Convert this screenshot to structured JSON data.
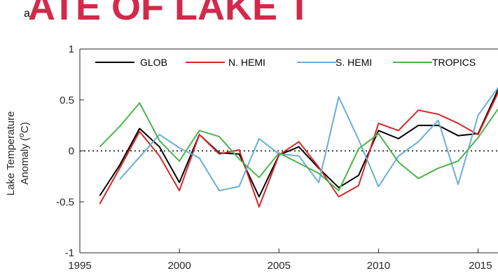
{
  "banner_text": "ATE OF LAKE T",
  "panel_letter": "a",
  "colors": {
    "GLOB": "#000000",
    "N. HEMI": "#d62728",
    "S. HEMI": "#6baed6",
    "TROPICS": "#4cb34c",
    "banner": "#d4294a"
  },
  "chart_data": {
    "type": "line",
    "xlim": [
      1995,
      2016
    ],
    "ylim": [
      -1,
      1
    ],
    "xticks": [
      1995,
      2000,
      2005,
      2010,
      2015
    ],
    "xtick_labels": [
      "1995",
      "2000",
      "2005",
      "2010",
      "2015"
    ],
    "yticks": [
      -1,
      -0.5,
      0,
      0.5,
      1
    ],
    "ytick_labels": [
      "-1",
      "-0.5",
      "0",
      "0.5",
      "1"
    ],
    "ylabel_line1": "Lake Temperature",
    "ylabel_line2": "Anomaly (°C)",
    "ylabel_line2_parts": [
      "Anomaly (",
      "o",
      "C)"
    ],
    "xlabel": "",
    "legend_placement": "top, horizontal",
    "zero_line": "dotted",
    "series": [
      {
        "name": "GLOB",
        "x": [
          1996,
          1997,
          1998,
          1999,
          2000,
          2001,
          2002,
          2003,
          2004,
          2005,
          2006,
          2007,
          2008,
          2009,
          2010,
          2011,
          2012,
          2013,
          2014,
          2015,
          2016
        ],
        "y": [
          -0.44,
          -0.14,
          0.22,
          0.04,
          -0.31,
          0.16,
          -0.02,
          -0.03,
          -0.45,
          -0.04,
          0.04,
          -0.17,
          -0.36,
          -0.24,
          0.2,
          0.12,
          0.25,
          0.25,
          0.15,
          0.17,
          0.6
        ]
      },
      {
        "name": "N. HEMI",
        "x": [
          1996,
          1997,
          1998,
          1999,
          2000,
          2001,
          2002,
          2003,
          2004,
          2005,
          2006,
          2007,
          2008,
          2009,
          2010,
          2011,
          2012,
          2013,
          2014,
          2015,
          2016
        ],
        "y": [
          -0.52,
          -0.17,
          0.19,
          -0.05,
          -0.39,
          0.16,
          -0.03,
          0.01,
          -0.55,
          -0.04,
          0.09,
          -0.16,
          -0.45,
          -0.34,
          0.27,
          0.2,
          0.4,
          0.36,
          0.27,
          0.16,
          0.57
        ]
      },
      {
        "name": "S. HEMI",
        "x": [
          1997,
          1998,
          1999,
          2000,
          2001,
          2002,
          2003,
          2004,
          2005,
          2006,
          2007,
          2008,
          2009,
          2010,
          2011,
          2012,
          2013,
          2014,
          2015,
          2016
        ],
        "y": [
          -0.28,
          -0.06,
          0.16,
          0.03,
          -0.07,
          -0.39,
          -0.35,
          0.12,
          -0.03,
          -0.05,
          -0.31,
          0.53,
          0.11,
          -0.35,
          -0.05,
          0.09,
          0.3,
          -0.33,
          0.35,
          0.62
        ]
      },
      {
        "name": "TROPICS",
        "x": [
          1996,
          1997,
          1998,
          1999,
          2000,
          2001,
          2002,
          2003,
          2004,
          2005,
          2006,
          2007,
          2008,
          2009,
          2010,
          2011,
          2012,
          2013,
          2014,
          2015,
          2016
        ],
        "y": [
          0.04,
          0.24,
          0.47,
          0.1,
          -0.1,
          0.2,
          0.14,
          -0.08,
          -0.26,
          -0.02,
          -0.12,
          -0.22,
          -0.39,
          0.02,
          0.17,
          -0.11,
          -0.27,
          -0.17,
          -0.1,
          0.13,
          0.41
        ]
      }
    ]
  }
}
